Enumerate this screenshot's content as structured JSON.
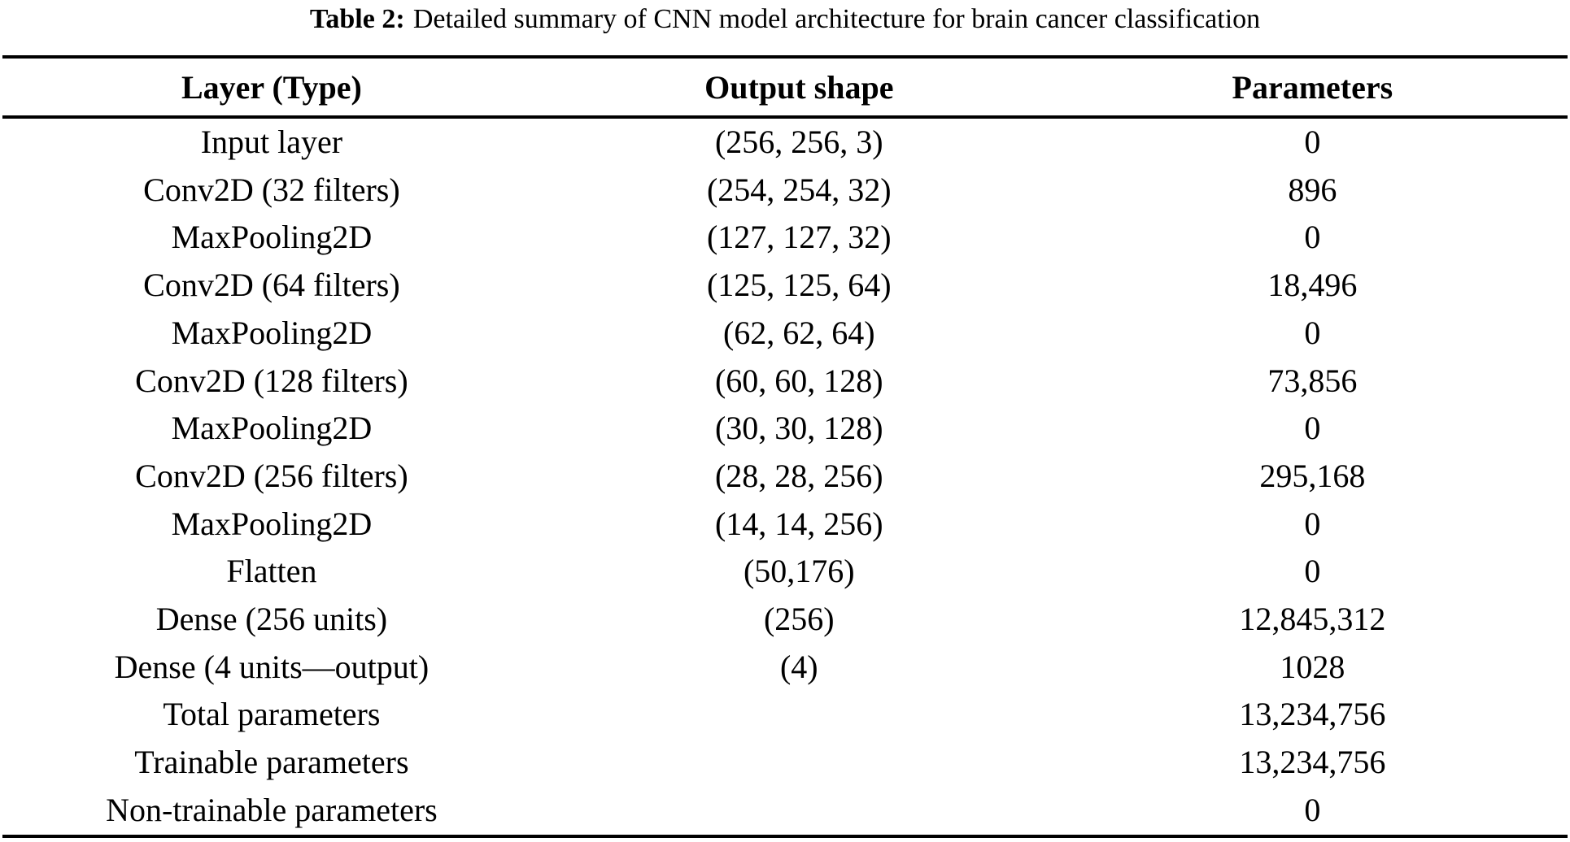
{
  "caption": {
    "label": "Table 2:",
    "text": "Detailed summary of CNN model architecture for brain cancer classification"
  },
  "table": {
    "columns": [
      "Layer (Type)",
      "Output shape",
      "Parameters"
    ],
    "rows": [
      [
        "Input layer",
        "(256, 256, 3)",
        "0"
      ],
      [
        "Conv2D (32 filters)",
        "(254, 254, 32)",
        "896"
      ],
      [
        "MaxPooling2D",
        "(127, 127, 32)",
        "0"
      ],
      [
        "Conv2D (64 filters)",
        "(125, 125, 64)",
        "18,496"
      ],
      [
        "MaxPooling2D",
        "(62, 62, 64)",
        "0"
      ],
      [
        "Conv2D (128 filters)",
        "(60, 60, 128)",
        "73,856"
      ],
      [
        "MaxPooling2D",
        "(30, 30, 128)",
        "0"
      ],
      [
        "Conv2D (256 filters)",
        "(28, 28, 256)",
        "295,168"
      ],
      [
        "MaxPooling2D",
        "(14, 14, 256)",
        "0"
      ],
      [
        "Flatten",
        "(50,176)",
        "0"
      ],
      [
        "Dense (256 units)",
        "(256)",
        "12,845,312"
      ],
      [
        "Dense (4 units—output)",
        "(4)",
        "1028"
      ],
      [
        "Total parameters",
        "",
        "13,234,756"
      ],
      [
        "Trainable parameters",
        "",
        "13,234,756"
      ],
      [
        "Non-trainable parameters",
        "",
        "0"
      ]
    ]
  },
  "colors": {
    "text": "#000000",
    "background": "#ffffff",
    "rule": "#000000"
  }
}
